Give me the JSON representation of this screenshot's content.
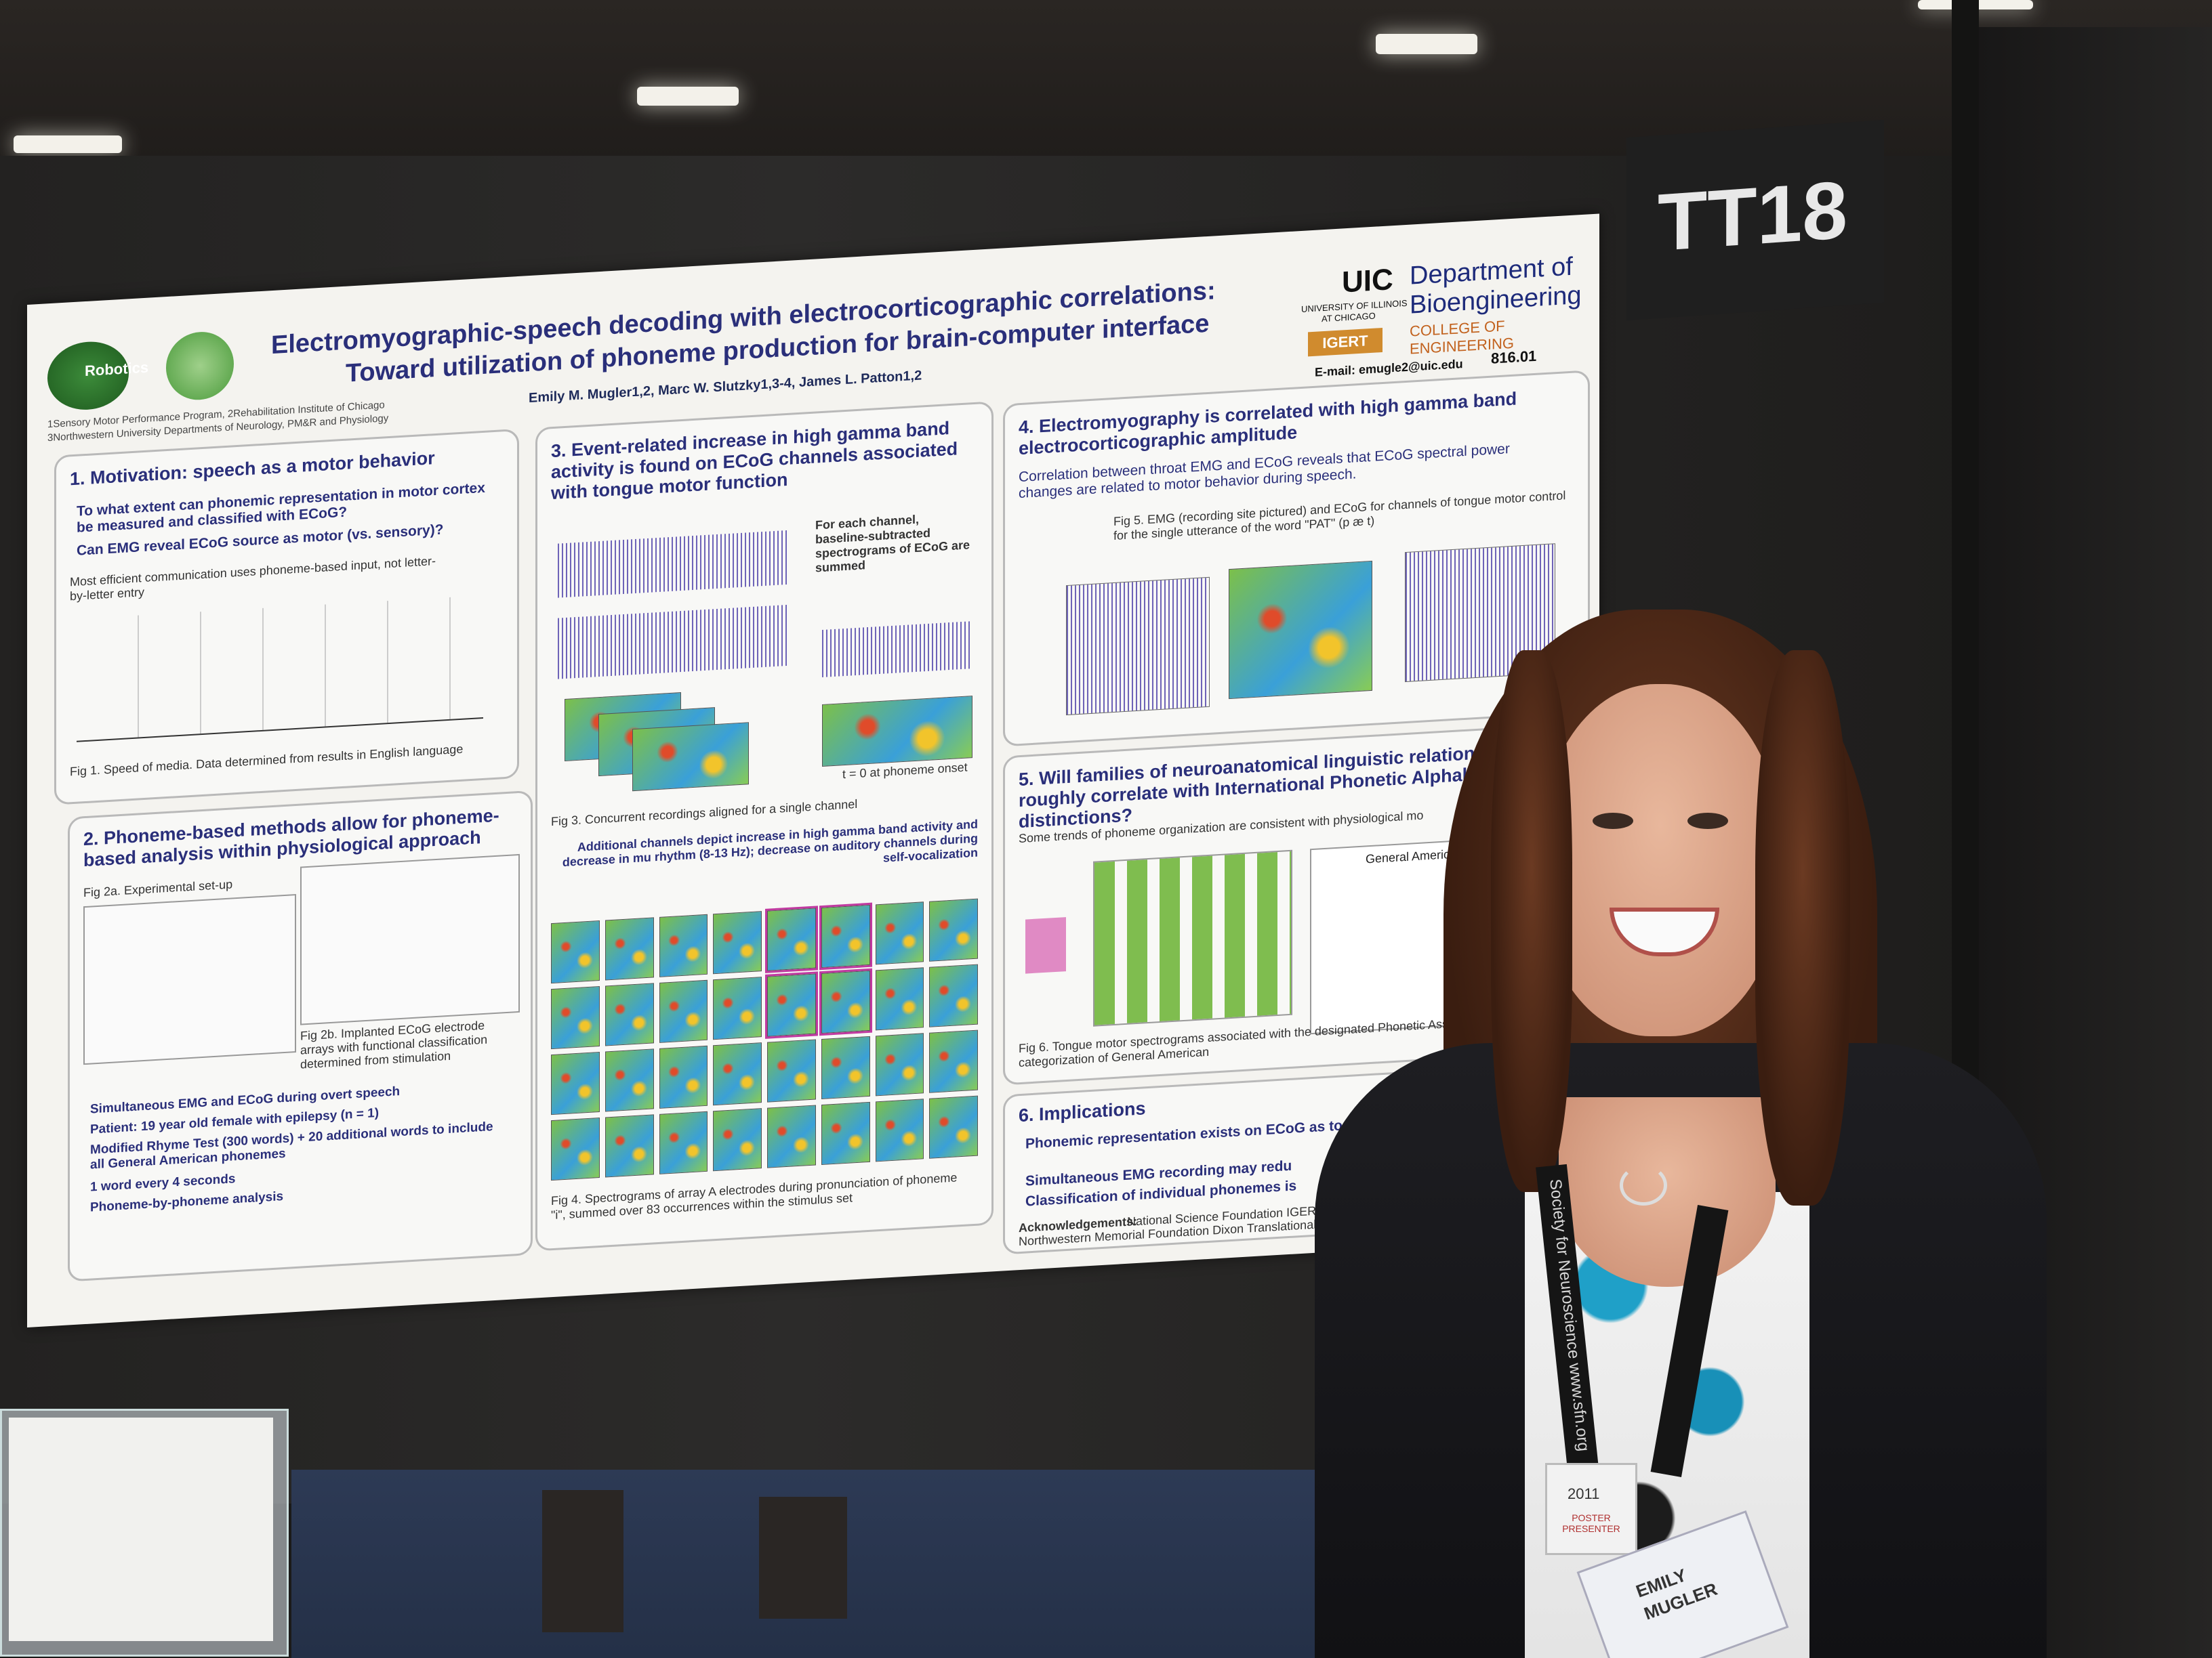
{
  "scene": {
    "description_tags": [
      "poster-session",
      "presenter",
      "scientific-poster"
    ]
  },
  "sign": {
    "label": "TT18"
  },
  "poster": {
    "title_line1": "Electromyographic-speech decoding with electrocorticographic correlations:",
    "title_line2": "Toward utilization of phoneme production for brain-computer interface",
    "authors": "Emily M. Mugler1,2, Marc W. Slutzky1,3-4, James L. Patton1,2",
    "affiliations_line1": "1Sensory Motor Performance Program, 2Rehabilitation Institute of Chicago",
    "affiliations_line2": "3Northwestern University Departments of Neurology, PM&R and Physiology",
    "logo_left": "Robotics",
    "uic_logo": "UIC",
    "uic_sub1": "UNIVERSITY OF ILLINOIS",
    "uic_sub2": "AT CHICAGO",
    "dept_line1": "Department of",
    "dept_line2": "Bioengineering",
    "college": "COLLEGE OF ENGINEERING",
    "igert": "IGERT",
    "email": "E-mail: emugle2@uic.edu",
    "poster_number": "816.01",
    "sections": {
      "s1": {
        "heading": "1. Motivation: speech as a motor behavior",
        "bullet1": "To what extent can phonemic representation in motor cortex be measured and classified with ECoG?",
        "bullet2": "Can EMG reveal ECoG source as motor (vs. sensory)?",
        "note": "Most efficient communication uses phoneme-based input, not letter-by-letter entry",
        "fig_caption": "Fig 1. Speed of media. Data determined from results in English language"
      },
      "s2": {
        "heading": "2. Phoneme-based methods allow for phoneme-based analysis within physiological approach",
        "fig2a": "Fig 2a. Experimental set-up",
        "fig2b": "Fig 2b. Implanted ECoG electrode arrays with functional classification determined from stimulation",
        "bullet1": "Simultaneous EMG and ECoG during overt speech",
        "bullet2": "Patient: 19 year old female with epilepsy (n = 1)",
        "bullet3": "Modified Rhyme Test (300 words) + 20 additional words to include all General American phonemes",
        "bullet4": "1 word every 4 seconds",
        "bullet5": "Phoneme-by-phoneme analysis"
      },
      "s3": {
        "heading": "3. Event-related increase in high gamma band activity is found on ECoG channels associated with tongue motor function",
        "side_note": "For each channel, baseline-subtracted spectrograms of ECoG are summed",
        "fig3": "Fig 3. Concurrent recordings aligned for a single channel",
        "extra": "Additional channels depict increase in high gamma band activity and decrease in mu rhythm (8-13 Hz); decrease on auditory channels during self-vocalization",
        "fig4": "Fig 4. Spectrograms of array A electrodes during pronunciation of phoneme \"i\", summed over 83 occurrences within the stimulus set",
        "onset": "t = 0 at phoneme onset"
      },
      "s4": {
        "heading": "4. Electromyography is correlated with high gamma band electrocorticographic amplitude",
        "text": "Correlation between throat EMG and ECoG reveals that ECoG spectral power changes are related to motor behavior during speech.",
        "fig5": "Fig 5. EMG (recording site pictured) and ECoG for channels of tongue motor control for the single utterance of the word \"PAT\" (p æ t)"
      },
      "s5": {
        "heading": "5. Will families of neuroanatomical linguistic relationships roughly correlate with International Phonetic Alphabet distinctions?",
        "bullet": "Some trends of phoneme organization are consistent with physiological mo",
        "chart_title": "General American Ac",
        "fig6": "Fig 6. Tongue motor spectrograms associated with the designated Phonetic Association (IPA) categorization of General American"
      },
      "s6": {
        "heading": "6. Implications",
        "bullet1": "Phonemic representation exists on ECoG as tongue motor cortex",
        "bullet2": "Simultaneous EMG recording may redu",
        "bullet3": "Classification of individual phonemes is",
        "ack_label": "Acknowledgements:",
        "ack_text": "National Science Foundation IGERT for Con",
        "ack_text2": "Northwestern Memorial Foundation Dixon Translational Research G"
      }
    }
  },
  "badge": {
    "year": "2011",
    "role": "POSTER PRESENTER",
    "first": "EMILY",
    "last": "MUGLER"
  },
  "lanyard_text": "Society for Neuroscience www.sfn.org",
  "colors": {
    "poster_title": "#2a2f7a",
    "poster_bg": "#f4f3ef",
    "background": "#1b1a19",
    "sign_bg": "#1f1f1f"
  }
}
